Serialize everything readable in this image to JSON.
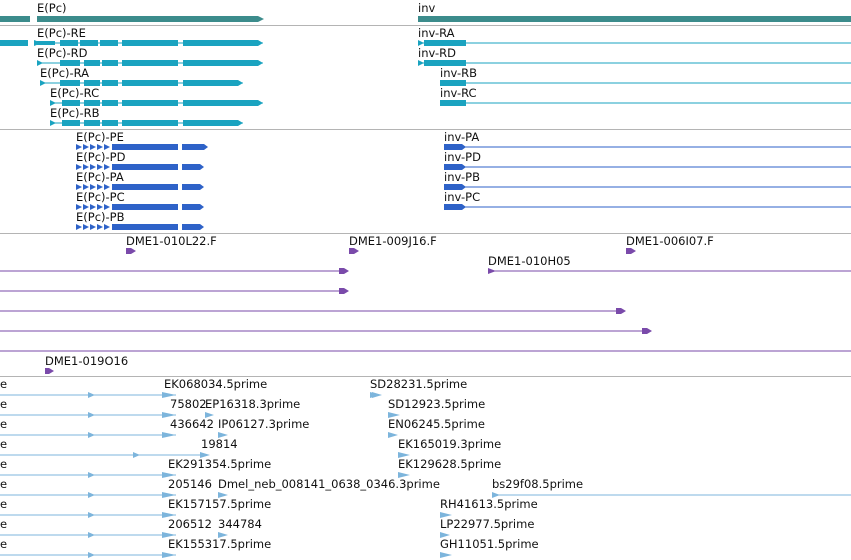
{
  "colors": {
    "gene": "#3c8c8c",
    "transcript": "#1aa3c0",
    "protein": "#2e62c8",
    "clone": "#7a4aaa",
    "est": "#7db5dc",
    "divider": "#b4b4b4"
  },
  "genes": {
    "epc": "E(Pc)",
    "inv": "inv"
  },
  "transcripts": {
    "epc_re": "E(Pc)-RE",
    "epc_rd": "E(Pc)-RD",
    "epc_ra": "E(Pc)-RA",
    "epc_rc": "E(Pc)-RC",
    "epc_rb": "E(Pc)-RB",
    "inv_ra": "inv-RA",
    "inv_rd": "inv-RD",
    "inv_rb": "inv-RB",
    "inv_rc": "inv-RC"
  },
  "proteins": {
    "epc_pe": "E(Pc)-PE",
    "epc_pd": "E(Pc)-PD",
    "epc_pa": "E(Pc)-PA",
    "epc_pc": "E(Pc)-PC",
    "epc_pb": "E(Pc)-PB",
    "inv_pa": "inv-PA",
    "inv_pd": "inv-PD",
    "inv_pb": "inv-PB",
    "inv_pc": "inv-PC"
  },
  "clones": {
    "c1": "DME1-010L22.F",
    "c2": "DME1-009J16.F",
    "c3": "DME1-006I07.F",
    "c4": "DME1-010H05",
    "c5": "DME1-019O16"
  },
  "ests": {
    "e1": "EK068034.5prime",
    "e2": "SD28231.5prime",
    "e3": "75802",
    "e4": "EP16318.3prime",
    "e5": "SD12923.5prime",
    "e6": "436642",
    "e7": "IP06127.3prime",
    "e8": "EN06245.5prime",
    "e9": "19814",
    "e10": "EK165019.3prime",
    "e11": "EK291354.5prime",
    "e12": "EK129628.5prime",
    "e13": "205146",
    "e14": "Dmel_neb_008141_0638_0346.3prime",
    "e15": "bs29f08.5prime",
    "e16": "EK157157.5prime",
    "e17": "RH41613.5prime",
    "e18": "206512",
    "e19": "344784",
    "e20": "LP22977.5prime",
    "e21": "EK155317.5prime",
    "e22": "GH11051.5prime",
    "edge": "e"
  }
}
